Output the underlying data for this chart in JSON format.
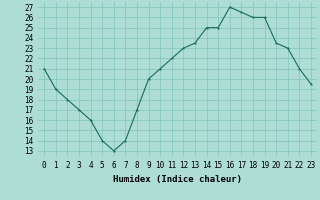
{
  "x": [
    0,
    1,
    2,
    3,
    4,
    5,
    6,
    7,
    8,
    9,
    10,
    11,
    12,
    13,
    14,
    15,
    16,
    17,
    18,
    19,
    20,
    21,
    22,
    23
  ],
  "y": [
    21,
    19,
    18,
    17,
    16,
    14,
    13,
    14,
    17,
    20,
    21,
    22,
    23,
    23.5,
    25,
    25,
    27,
    26.5,
    26,
    26,
    23.5,
    23,
    21,
    19.5
  ],
  "xlabel": "Humidex (Indice chaleur)",
  "xlim": [
    -0.5,
    23.5
  ],
  "ylim": [
    12.5,
    27.5
  ],
  "yticks": [
    13,
    14,
    15,
    16,
    17,
    18,
    19,
    20,
    21,
    22,
    23,
    24,
    25,
    26,
    27
  ],
  "xticks": [
    0,
    1,
    2,
    3,
    4,
    5,
    6,
    7,
    8,
    9,
    10,
    11,
    12,
    13,
    14,
    15,
    16,
    17,
    18,
    19,
    20,
    21,
    22,
    23
  ],
  "line_color": "#1a6b5a",
  "marker": "*",
  "background_color": "#aeddd6",
  "grid_color": "#80c4bc",
  "label_fontsize": 6.5,
  "tick_fontsize": 5.5
}
